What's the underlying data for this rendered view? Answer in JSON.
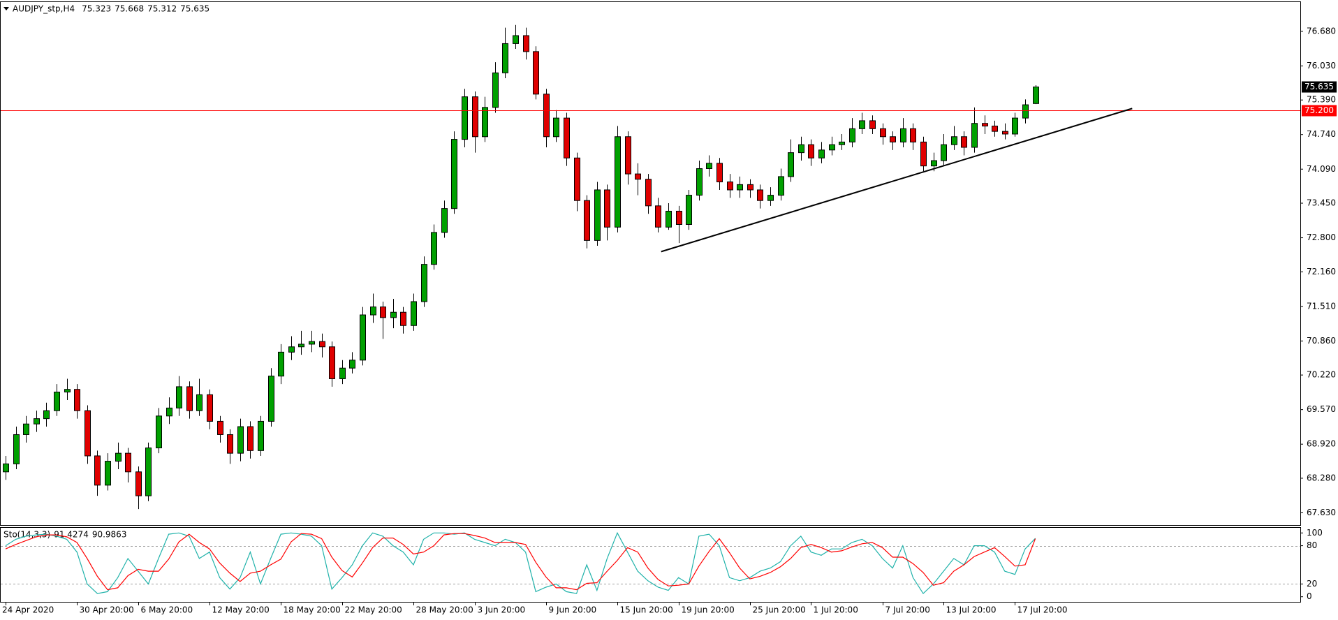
{
  "chart_data": [
    {
      "type": "candlestick",
      "title": "AUDJPY_stp,H4",
      "categories": [
        "24 Apr 2020",
        null,
        null,
        null,
        null,
        null,
        null,
        "30 Apr 20:00",
        null,
        null,
        null,
        null,
        null,
        "6 May 20:00",
        null,
        null,
        null,
        null,
        null,
        null,
        "12 May 20:00",
        null,
        null,
        null,
        null,
        null,
        null,
        "18 May 20:00",
        null,
        null,
        null,
        null,
        null,
        "22 May 20:00",
        null,
        null,
        null,
        null,
        null,
        null,
        "28 May 20:00",
        null,
        null,
        null,
        null,
        null,
        "3 Jun 20:00",
        null,
        null,
        null,
        null,
        null,
        null,
        "9 Jun 20:00",
        null,
        null,
        null,
        null,
        null,
        null,
        "15 Jun 20:00",
        null,
        null,
        null,
        null,
        null,
        "19 Jun 20:00",
        null,
        null,
        null,
        null,
        null,
        null,
        "25 Jun 20:00",
        null,
        null,
        null,
        null,
        null,
        "1 Jul 20:00",
        null,
        null,
        null,
        null,
        null,
        null,
        "7 Jul 20:00",
        null,
        null,
        null,
        null,
        null,
        "13 Jul 20:00",
        null,
        null,
        null,
        null,
        null,
        null,
        "17 Jul 20:00",
        null,
        null
      ],
      "open": [
        68.4,
        68.55,
        69.1,
        69.3,
        69.4,
        69.55,
        69.9,
        69.95,
        69.55,
        68.7,
        68.15,
        68.6,
        68.75,
        68.4,
        67.95,
        68.85,
        69.45,
        69.6,
        70.0,
        69.55,
        69.85,
        69.35,
        69.1,
        68.75,
        69.25,
        68.8,
        69.35,
        70.2,
        70.65,
        70.75,
        70.8,
        70.85,
        70.75,
        70.15,
        70.35,
        70.5,
        71.35,
        71.5,
        71.3,
        71.4,
        71.15,
        71.6,
        72.3,
        72.9,
        73.35,
        74.65,
        75.45,
        74.7,
        75.25,
        75.9,
        76.45,
        76.6,
        76.3,
        75.5,
        74.7,
        75.05,
        74.3,
        73.5,
        72.75,
        73.7,
        73.0,
        74.7,
        74.0,
        73.9,
        73.4,
        73.0,
        73.3,
        73.05,
        73.6,
        74.1,
        74.2,
        73.85,
        73.7,
        73.8,
        73.7,
        73.5,
        73.6,
        73.95,
        74.4,
        74.55,
        74.3,
        74.45,
        74.55,
        74.6,
        74.85,
        75.0,
        74.85,
        74.7,
        74.6,
        74.85,
        74.6,
        74.15,
        74.25,
        74.55,
        74.7,
        74.5,
        74.95,
        74.9,
        74.8,
        74.75,
        75.05,
        75.323
      ],
      "high": [
        68.7,
        69.25,
        69.45,
        69.55,
        69.7,
        70.05,
        70.15,
        70.05,
        69.65,
        68.8,
        68.75,
        68.95,
        68.85,
        68.5,
        68.95,
        69.6,
        69.8,
        70.2,
        70.1,
        70.15,
        69.95,
        69.45,
        69.2,
        69.4,
        69.35,
        69.45,
        70.35,
        70.8,
        70.95,
        71.05,
        71.05,
        71.0,
        70.85,
        70.5,
        70.65,
        71.5,
        71.75,
        71.6,
        71.65,
        71.5,
        71.75,
        72.45,
        73.05,
        73.5,
        74.8,
        75.6,
        75.55,
        75.45,
        76.1,
        76.75,
        76.8,
        76.75,
        76.4,
        75.6,
        75.2,
        75.15,
        74.4,
        73.6,
        73.85,
        73.8,
        74.9,
        74.8,
        74.2,
        74.0,
        73.55,
        73.45,
        73.4,
        73.7,
        74.25,
        74.35,
        74.3,
        74.0,
        73.95,
        73.9,
        73.8,
        73.75,
        74.1,
        74.65,
        74.7,
        74.65,
        74.6,
        74.7,
        74.75,
        75.05,
        75.15,
        75.1,
        74.95,
        74.8,
        75.05,
        74.95,
        74.7,
        74.4,
        74.75,
        74.9,
        74.8,
        75.25,
        75.1,
        75.0,
        74.95,
        75.15,
        75.4,
        75.668
      ],
      "low": [
        68.25,
        68.45,
        68.95,
        69.15,
        69.25,
        69.45,
        69.75,
        69.4,
        68.55,
        67.95,
        68.05,
        68.45,
        68.2,
        67.7,
        67.85,
        68.75,
        69.3,
        69.45,
        69.4,
        69.45,
        69.2,
        68.95,
        68.55,
        68.6,
        68.65,
        68.7,
        69.25,
        70.05,
        70.5,
        70.6,
        70.65,
        70.55,
        70.0,
        70.05,
        70.25,
        70.4,
        71.2,
        70.9,
        71.1,
        71.0,
        71.05,
        71.5,
        72.2,
        72.8,
        73.25,
        74.5,
        74.4,
        74.6,
        75.15,
        75.8,
        76.35,
        76.15,
        75.4,
        74.5,
        74.6,
        74.15,
        73.3,
        72.6,
        72.65,
        72.75,
        72.9,
        73.8,
        73.6,
        73.25,
        72.9,
        72.95,
        72.7,
        72.95,
        73.5,
        73.95,
        73.7,
        73.55,
        73.55,
        73.55,
        73.35,
        73.4,
        73.5,
        73.85,
        74.25,
        74.15,
        74.2,
        74.35,
        74.45,
        74.5,
        74.75,
        74.75,
        74.55,
        74.45,
        74.5,
        74.45,
        74.05,
        74.05,
        74.15,
        74.45,
        74.35,
        74.4,
        74.75,
        74.7,
        74.65,
        74.7,
        74.95,
        75.312
      ],
      "close": [
        68.55,
        69.1,
        69.3,
        69.4,
        69.55,
        69.9,
        69.95,
        69.55,
        68.7,
        68.15,
        68.6,
        68.75,
        68.4,
        67.95,
        68.85,
        69.45,
        69.6,
        70.0,
        69.55,
        69.85,
        69.35,
        69.1,
        68.75,
        69.25,
        68.8,
        69.35,
        70.2,
        70.65,
        70.75,
        70.8,
        70.85,
        70.75,
        70.15,
        70.35,
        70.5,
        71.35,
        71.5,
        71.3,
        71.4,
        71.15,
        71.6,
        72.3,
        72.9,
        73.35,
        74.65,
        75.45,
        74.7,
        75.25,
        75.9,
        76.45,
        76.6,
        76.3,
        75.5,
        74.7,
        75.05,
        74.3,
        73.5,
        72.75,
        73.7,
        73.0,
        74.7,
        74.0,
        73.9,
        73.4,
        73.0,
        73.3,
        73.05,
        73.6,
        74.1,
        74.2,
        73.85,
        73.7,
        73.8,
        73.7,
        73.5,
        73.6,
        73.95,
        74.4,
        74.55,
        74.3,
        74.45,
        74.55,
        74.6,
        74.85,
        75.0,
        74.85,
        74.7,
        74.6,
        74.85,
        74.6,
        74.15,
        74.25,
        74.55,
        74.7,
        74.5,
        74.95,
        74.9,
        74.8,
        74.75,
        75.05,
        75.3,
        75.635
      ],
      "up_color": "#00a000",
      "down_color": "#e00000",
      "wick_color": "#000000",
      "ylim": [
        67.4,
        77.23
      ],
      "yticks": [
        {
          "value": 76.68,
          "label": "76.680"
        },
        {
          "value": 76.03,
          "label": "76.030"
        },
        {
          "value": 75.39,
          "label": "75.390"
        },
        {
          "value": 74.74,
          "label": "74.740"
        },
        {
          "value": 74.09,
          "label": "74.090"
        },
        {
          "value": 73.45,
          "label": "73.450"
        },
        {
          "value": 72.8,
          "label": "72.800"
        },
        {
          "value": 72.16,
          "label": "72.160"
        },
        {
          "value": 71.51,
          "label": "71.510"
        },
        {
          "value": 70.86,
          "label": "70.860"
        },
        {
          "value": 70.22,
          "label": "70.220"
        },
        {
          "value": 69.57,
          "label": "69.570"
        },
        {
          "value": 68.92,
          "label": "68.920"
        },
        {
          "value": 68.28,
          "label": "68.280"
        },
        {
          "value": 67.63,
          "label": "67.630"
        }
      ],
      "hline": {
        "value": 75.2,
        "label": "75.200",
        "color": "#ff0000"
      },
      "trendline": {
        "x": [
          64.3,
          110.5
        ],
        "y": [
          72.54,
          75.23
        ],
        "color": "#000000"
      }
    },
    {
      "type": "line",
      "title": "Sto(14,3,3)",
      "ylim": [
        -8,
        108
      ],
      "yticks": [
        100,
        80,
        20,
        0
      ],
      "levels": [
        80,
        20
      ],
      "series": [
        {
          "color": "#20b2aa",
          "values": [
            80,
            90,
            95,
            97,
            98,
            95,
            90,
            70,
            20,
            5,
            8,
            30,
            60,
            40,
            20,
            60,
            98,
            100,
            95,
            60,
            70,
            30,
            12,
            30,
            70,
            20,
            60,
            98,
            100,
            98,
            95,
            80,
            12,
            30,
            50,
            80,
            100,
            95,
            80,
            70,
            50,
            90,
            100,
            100,
            98,
            100,
            90,
            85,
            80,
            90,
            85,
            70,
            8,
            15,
            20,
            8,
            5,
            50,
            10,
            60,
            100,
            70,
            40,
            25,
            15,
            10,
            30,
            20,
            95,
            98,
            80,
            30,
            25,
            30,
            40,
            45,
            55,
            80,
            95,
            70,
            65,
            75,
            75,
            85,
            90,
            80,
            60,
            45,
            80,
            30,
            5,
            20,
            40,
            60,
            50,
            80,
            80,
            70,
            40,
            35,
            75,
            91.4274
          ]
        },
        {
          "color": "#ff0000",
          "values": [
            75,
            82,
            88,
            94,
            97,
            97,
            94,
            85,
            60,
            32,
            11,
            14,
            33,
            43,
            40,
            40,
            59,
            86,
            98,
            85,
            75,
            53,
            37,
            24,
            37,
            40,
            50,
            59,
            86,
            99,
            98,
            91,
            62,
            41,
            31,
            53,
            77,
            92,
            92,
            82,
            67,
            70,
            80,
            97,
            99,
            99,
            96,
            92,
            85,
            85,
            85,
            82,
            54,
            31,
            14,
            14,
            11,
            21,
            22,
            40,
            57,
            77,
            70,
            45,
            27,
            17,
            18,
            20,
            48,
            71,
            91,
            69,
            45,
            28,
            32,
            38,
            47,
            60,
            77,
            82,
            77,
            70,
            72,
            78,
            83,
            85,
            77,
            62,
            62,
            52,
            38,
            18,
            22,
            40,
            50,
            63,
            70,
            77,
            63,
            48,
            50,
            90.9863
          ]
        }
      ]
    }
  ]
}
